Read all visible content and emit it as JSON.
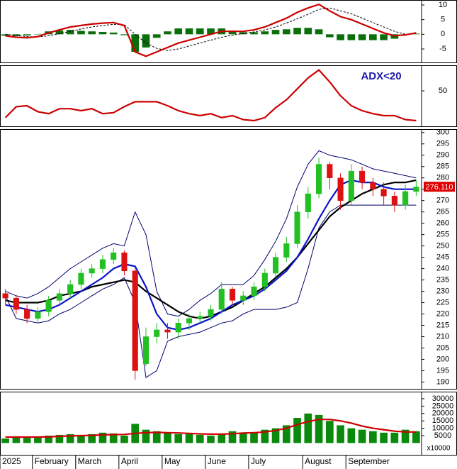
{
  "chart_data": [
    {
      "type": "line",
      "ylim": [
        -9.6,
        11.7
      ],
      "yticks": [
        -5,
        0,
        5,
        10
      ],
      "series": [
        {
          "style": "bars",
          "color": "#0a6e0a",
          "values": [
            -0.5,
            -0.6,
            -0.4,
            0.1,
            1,
            1.3,
            1.5,
            1.2,
            1,
            0.8,
            0.6,
            -0.3,
            -6,
            -4.5,
            -1.2,
            1,
            2,
            2,
            2,
            2,
            2,
            1.3,
            0.7,
            0.7,
            1,
            1.5,
            1.7,
            2.2,
            2.2,
            1.7,
            -1,
            -2,
            -2,
            -2,
            -2,
            -2,
            -1.5,
            -0.2,
            0.2
          ]
        },
        {
          "style": "dashed",
          "color": "#000000",
          "values": [
            0,
            -0.4,
            -0.8,
            -0.9,
            -0.5,
            0.2,
            1,
            1.8,
            2.5,
            3,
            3.4,
            3.3,
            0,
            -3,
            -4.8,
            -5.5,
            -5,
            -4,
            -3,
            -2,
            -1,
            -0.3,
            0.3,
            0.8,
            1.5,
            2.5,
            3.8,
            5.3,
            6.8,
            8.5,
            9,
            8,
            7,
            5.5,
            4,
            2.5,
            1,
            0,
            0.3
          ]
        },
        {
          "style": "line",
          "color": "#cc0000",
          "values": [
            -0.5,
            -1,
            -1.2,
            -0.8,
            0.5,
            1.5,
            2.5,
            3,
            3.5,
            3.8,
            4,
            3,
            -6,
            -7.5,
            -6,
            -4.5,
            -3,
            -2,
            -1,
            0,
            1,
            1,
            1,
            1.5,
            2.5,
            4,
            5.5,
            7.5,
            9,
            10.2,
            8,
            6,
            5,
            3.5,
            2,
            0.5,
            -0.5,
            -0.2,
            0.5
          ]
        }
      ]
    },
    {
      "type": "line",
      "ylim": [
        14.3,
        75.7
      ],
      "yticks": [
        50
      ],
      "annotation": "ADX<20",
      "series": [
        {
          "style": "line",
          "color": "#cc0000",
          "values": [
            23,
            34,
            35,
            29,
            27,
            32,
            32,
            30,
            32,
            27,
            28,
            34,
            39,
            39,
            39,
            35,
            30,
            27,
            25,
            27,
            23,
            25,
            21,
            20,
            23,
            33,
            41,
            52,
            63,
            71,
            59,
            45,
            35,
            30,
            27,
            25,
            25,
            21,
            20
          ]
        }
      ]
    },
    {
      "type": "candlestick",
      "ylim": [
        187,
        301.5
      ],
      "yticks": [
        190,
        195,
        200,
        205,
        210,
        215,
        220,
        225,
        230,
        235,
        240,
        245,
        250,
        255,
        260,
        265,
        270,
        275,
        280,
        285,
        290,
        295,
        300
      ],
      "last_price": {
        "value": 276.11,
        "label": "276.110"
      },
      "last_color": "#dd0000",
      "series": [
        {
          "style": "thin",
          "color": "#00006e",
          "values": [
            230,
            228,
            227,
            229,
            232,
            236,
            240,
            243,
            246,
            249,
            251,
            250,
            265,
            255,
            230,
            220,
            219,
            222,
            226,
            229,
            233,
            233,
            233,
            237,
            244,
            252,
            262,
            276,
            286,
            292,
            290,
            289,
            288,
            286,
            284,
            283,
            282,
            281,
            280
          ]
        },
        {
          "style": "thin",
          "color": "#00006e",
          "values": [
            228,
            218,
            217,
            216,
            217,
            220,
            222,
            225,
            228,
            231,
            233,
            236,
            225,
            192,
            195,
            208,
            210,
            211,
            212,
            214,
            216,
            217,
            220,
            222,
            222,
            222,
            223,
            225,
            240,
            258,
            265,
            268,
            268,
            268,
            268,
            268,
            268,
            268,
            268
          ]
        },
        {
          "style": "line",
          "color": "#000000",
          "values": [
            226,
            225,
            225,
            225,
            226,
            228,
            229,
            230,
            232,
            233,
            234,
            235,
            234,
            230,
            227,
            224,
            221,
            219,
            218,
            219,
            221,
            223,
            226,
            229,
            232,
            236,
            240,
            245,
            251,
            257,
            263,
            267,
            270,
            273,
            275,
            277,
            278,
            278,
            279
          ]
        },
        {
          "style": "line",
          "color": "#0a14c8",
          "values": [
            224,
            223,
            222,
            221,
            222,
            224,
            227,
            230,
            233,
            236,
            240,
            242,
            241,
            232,
            220,
            214,
            213,
            214,
            216,
            218,
            221,
            224,
            226,
            228,
            231,
            235,
            239,
            245,
            253,
            262,
            270,
            277,
            279,
            278,
            278,
            276,
            275,
            275,
            275
          ]
        },
        {
          "style": "candles",
          "up_color": "#22c022",
          "down_color": "#dd1111",
          "open": [
            229,
            227,
            222,
            218,
            221,
            226,
            229,
            233,
            238,
            240,
            244,
            247,
            239,
            198,
            210,
            213,
            212,
            216,
            218,
            219,
            222,
            231,
            226,
            228,
            232,
            238,
            245,
            251,
            265,
            273,
            286,
            280,
            270,
            283,
            278,
            275,
            272,
            268,
            274
          ],
          "high": [
            231,
            228,
            224,
            223,
            228,
            231,
            235,
            240,
            242,
            246,
            249,
            248,
            240,
            214,
            216,
            216,
            218,
            220,
            221,
            224,
            234,
            232,
            230,
            234,
            240,
            247,
            254,
            268,
            276,
            289,
            287,
            282,
            286,
            285,
            280,
            278,
            274,
            277,
            279
          ],
          "low": [
            224,
            220,
            216,
            216,
            219,
            224,
            227,
            231,
            236,
            238,
            242,
            237,
            191,
            197,
            207,
            209,
            209,
            213,
            216,
            217,
            220,
            224,
            224,
            226,
            230,
            236,
            243,
            249,
            262,
            271,
            275,
            266,
            268,
            275,
            272,
            268,
            265,
            266,
            272
          ],
          "close": [
            227,
            222,
            218,
            221,
            226,
            229,
            233,
            238,
            240,
            244,
            247,
            239,
            195,
            210,
            213,
            212,
            216,
            218,
            219,
            222,
            231,
            226,
            228,
            232,
            238,
            245,
            251,
            265,
            273,
            286,
            280,
            270,
            283,
            278,
            275,
            272,
            268,
            274,
            276
          ]
        }
      ]
    },
    {
      "type": "bar",
      "ylim": [
        -8000,
        34800
      ],
      "yticks": [
        5000,
        10000,
        15000,
        20000,
        25000,
        30000
      ],
      "unit_label": "x10000",
      "categories": [
        "2025",
        null,
        null,
        "February",
        null,
        null,
        null,
        "March",
        null,
        null,
        null,
        "April",
        null,
        null,
        null,
        "May",
        null,
        null,
        null,
        "June",
        null,
        null,
        null,
        "July",
        null,
        null,
        null,
        null,
        "August",
        null,
        null,
        null,
        "September",
        null,
        null,
        null,
        null,
        null,
        null
      ],
      "series": [
        {
          "style": "bars",
          "color": "#0a8a0a",
          "values": [
            3000,
            4000,
            3500,
            4000,
            5000,
            5500,
            6000,
            5000,
            6000,
            7000,
            6500,
            5000,
            13000,
            9000,
            8000,
            7000,
            6000,
            6000,
            5500,
            5000,
            6000,
            8000,
            7000,
            7000,
            9000,
            10000,
            12000,
            17000,
            20000,
            19000,
            15000,
            12000,
            10000,
            9000,
            8000,
            7000,
            7000,
            9000,
            8000
          ]
        },
        {
          "style": "line",
          "color": "#cc0000",
          "values": [
            4000,
            4000,
            4000,
            4000,
            4200,
            4500,
            4800,
            5000,
            5200,
            5500,
            5700,
            5800,
            6500,
            7000,
            7200,
            7000,
            6800,
            6500,
            6200,
            6000,
            6000,
            6300,
            6700,
            7000,
            7500,
            8500,
            10000,
            12500,
            14500,
            16000,
            16000,
            15000,
            13500,
            11500,
            10000,
            9000,
            8000,
            7500,
            7500
          ]
        }
      ]
    }
  ]
}
